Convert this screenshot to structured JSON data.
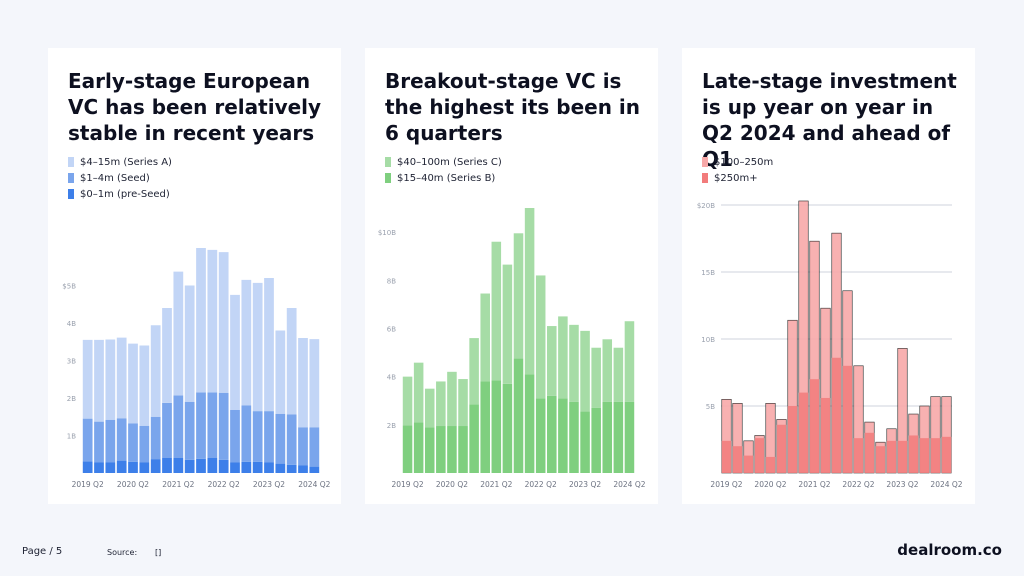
{
  "footer": {
    "page_label": "Page / 5",
    "source_label": "Source:",
    "source_value": "[]",
    "brand": "dealroom.co"
  },
  "chart_data": [
    {
      "type": "bar",
      "stacked": true,
      "title": "Early-stage European VC has been relatively stable in recent years",
      "legend": [
        "$4–15m (Series A)",
        "$1–4m (Seed)",
        "$0–1m (pre-Seed)"
      ],
      "colors": [
        "#c2d5f6",
        "#7aa5ec",
        "#3d7fe9"
      ],
      "categories": [
        "2019 Q2",
        "2019 Q3",
        "2019 Q4",
        "2020 Q1",
        "2020 Q2",
        "2020 Q3",
        "2020 Q4",
        "2021 Q1",
        "2021 Q2",
        "2021 Q3",
        "2021 Q4",
        "2022 Q1",
        "2022 Q2",
        "2022 Q3",
        "2022 Q4",
        "2023 Q1",
        "2023 Q2",
        "2023 Q3",
        "2023 Q4",
        "2024 Q1",
        "2024 Q2"
      ],
      "x_tick_labels": [
        "2019 Q2",
        "2020 Q2",
        "2021 Q2",
        "2022 Q2",
        "2023 Q2",
        "2024 Q2"
      ],
      "ylim": [
        0,
        6
      ],
      "y_ticks": [
        1,
        2,
        3,
        4,
        5
      ],
      "y_tick_labels": [
        "1B",
        "2B",
        "3B",
        "4B",
        "$5B"
      ],
      "series": [
        {
          "name": "$0–1m (pre-Seed)",
          "values": [
            0.31,
            0.28,
            0.28,
            0.33,
            0.3,
            0.28,
            0.37,
            0.4,
            0.4,
            0.35,
            0.38,
            0.4,
            0.35,
            0.28,
            0.3,
            0.3,
            0.28,
            0.25,
            0.22,
            0.2,
            0.17
          ]
        },
        {
          "name": "$1–4m (Seed)",
          "values": [
            1.14,
            1.09,
            1.14,
            1.13,
            1.02,
            0.98,
            1.13,
            1.47,
            1.67,
            1.55,
            1.77,
            1.75,
            1.79,
            1.4,
            1.5,
            1.35,
            1.37,
            1.33,
            1.34,
            1.02,
            1.05
          ]
        },
        {
          "name": "$4–15m (Series A)",
          "values": [
            2.1,
            2.18,
            2.14,
            2.15,
            2.13,
            2.14,
            2.44,
            2.53,
            3.3,
            3.1,
            3.85,
            3.8,
            3.75,
            3.07,
            3.35,
            3.42,
            3.55,
            2.22,
            2.84,
            2.38,
            2.35
          ]
        }
      ]
    },
    {
      "type": "bar",
      "stacked": true,
      "title": "Breakout-stage VC is the highest its been in 6 quarters",
      "legend": [
        "$40–100m (Series C)",
        "$15–40m (Series B)"
      ],
      "colors": [
        "#a6dca6",
        "#7fcf7f"
      ],
      "categories": [
        "2019 Q2",
        "2019 Q3",
        "2019 Q4",
        "2020 Q1",
        "2020 Q2",
        "2020 Q3",
        "2020 Q4",
        "2021 Q1",
        "2021 Q2",
        "2021 Q3",
        "2021 Q4",
        "2022 Q1",
        "2022 Q2",
        "2022 Q3",
        "2022 Q4",
        "2023 Q1",
        "2023 Q2",
        "2023 Q3",
        "2023 Q4",
        "2024 Q1",
        "2024 Q2"
      ],
      "x_tick_labels": [
        "2019 Q2",
        "2020 Q2",
        "2021 Q2",
        "2022 Q2",
        "2023 Q2",
        "2024 Q2"
      ],
      "ylim": [
        0,
        11
      ],
      "y_ticks": [
        2,
        4,
        6,
        8,
        10
      ],
      "y_tick_labels": [
        "2B",
        "4B",
        "6B",
        "8B",
        "$10B"
      ],
      "series": [
        {
          "name": "$15–40m (Series B)",
          "values": [
            1.97,
            2.1,
            1.9,
            1.95,
            1.95,
            1.95,
            2.85,
            3.8,
            3.85,
            3.7,
            4.75,
            4.1,
            3.1,
            3.2,
            3.1,
            2.95,
            2.55,
            2.7,
            2.95,
            2.95,
            2.95
          ]
        },
        {
          "name": "$40–100m (Series C)",
          "values": [
            2.03,
            2.48,
            1.6,
            1.85,
            2.25,
            1.95,
            2.75,
            3.65,
            5.75,
            4.95,
            5.2,
            6.9,
            5.1,
            2.9,
            3.4,
            3.2,
            3.35,
            2.5,
            2.6,
            2.25,
            3.35
          ]
        }
      ]
    },
    {
      "type": "bar",
      "stacked": false,
      "overlapping": true,
      "title": "Late-stage investment is up year on year in Q2 2024 and ahead of Q1",
      "legend": [
        "$100–250m",
        "$250m+"
      ],
      "colors": [
        "#f7a8a8",
        "#f27b7b"
      ],
      "categories": [
        "2019 Q2",
        "2019 Q3",
        "2019 Q4",
        "2020 Q1",
        "2020 Q2",
        "2020 Q3",
        "2020 Q4",
        "2021 Q1",
        "2021 Q2",
        "2021 Q3",
        "2021 Q4",
        "2022 Q1",
        "2022 Q2",
        "2022 Q3",
        "2022 Q4",
        "2023 Q1",
        "2023 Q2",
        "2023 Q3",
        "2023 Q4",
        "2024 Q1",
        "2024 Q2"
      ],
      "x_tick_labels": [
        "2019 Q2",
        "2020 Q2",
        "2021 Q2",
        "2022 Q2",
        "2023 Q2",
        "2024 Q2"
      ],
      "ylim": [
        0,
        20
      ],
      "y_ticks": [
        5,
        10,
        15,
        20
      ],
      "y_tick_labels": [
        "5B",
        "10B",
        "15B",
        "$20B"
      ],
      "series": [
        {
          "name": "$100–250m",
          "values": [
            5.5,
            5.2,
            2.4,
            2.8,
            5.2,
            4.0,
            11.4,
            20.3,
            17.3,
            12.3,
            17.9,
            13.6,
            8.0,
            3.8,
            2.3,
            3.3,
            9.3,
            4.4,
            5.0,
            5.7,
            5.7
          ]
        },
        {
          "name": "$250m+",
          "values": [
            2.4,
            2.0,
            1.3,
            2.6,
            1.2,
            3.6,
            5.0,
            6.0,
            7.0,
            5.6,
            8.6,
            8.0,
            2.6,
            3.0,
            2.0,
            2.4,
            2.4,
            2.8,
            2.6,
            2.6,
            2.7
          ]
        }
      ]
    }
  ]
}
